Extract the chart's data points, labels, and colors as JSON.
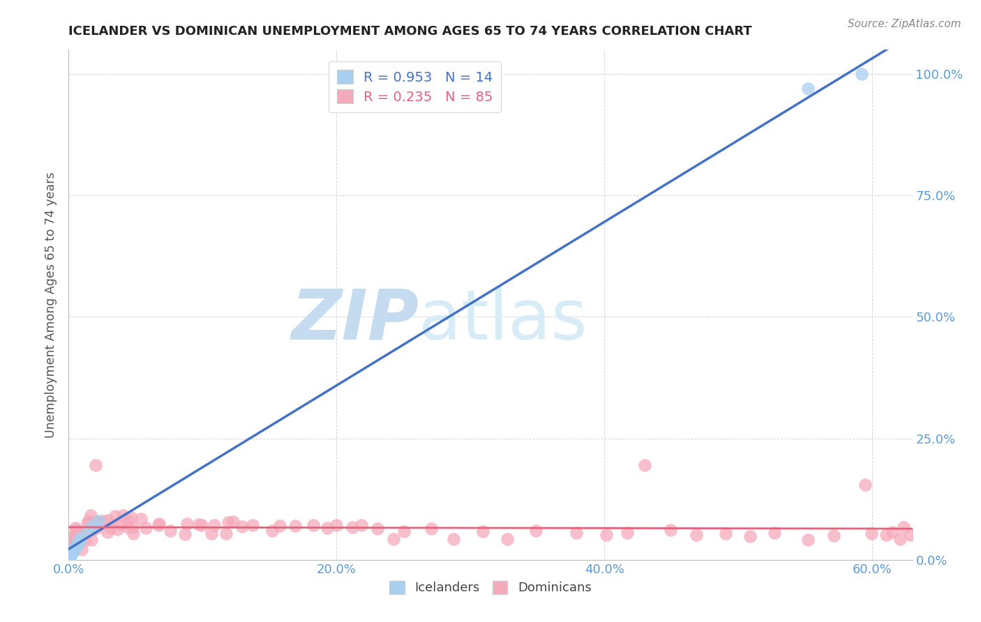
{
  "title": "ICELANDER VS DOMINICAN UNEMPLOYMENT AMONG AGES 65 TO 74 YEARS CORRELATION CHART",
  "source": "Source: ZipAtlas.com",
  "ylabel": "Unemployment Among Ages 65 to 74 years",
  "icelander_R": 0.953,
  "icelander_N": 14,
  "dominican_R": 0.235,
  "dominican_N": 85,
  "icelander_color": "#A8D0F0",
  "dominican_color": "#F5AABB",
  "icelander_line_color": "#4472C4",
  "dominican_line_color": "#E8607A",
  "tick_color": "#5B9BD5",
  "watermark_zip_color": "#C8DFF0",
  "watermark_atlas_color": "#D8E8F5",
  "background_color": "#FFFFFF",
  "xlim": [
    0.0,
    0.63
  ],
  "ylim": [
    0.0,
    1.05
  ],
  "x_ticks": [
    0.0,
    0.2,
    0.4,
    0.6
  ],
  "x_tick_labels": [
    "0.0%",
    "20.0%",
    "40.0%",
    "60.0%"
  ],
  "y_ticks": [
    0.0,
    0.25,
    0.5,
    0.75,
    1.0
  ],
  "y_tick_labels": [
    "0.0%",
    "25.0%",
    "50.0%",
    "75.0%",
    "100.0%"
  ],
  "icelander_x": [
    0.001,
    0.002,
    0.003,
    0.004,
    0.005,
    0.006,
    0.007,
    0.008,
    0.009,
    0.015,
    0.018,
    0.022,
    0.552,
    0.592
  ],
  "icelander_y": [
    0.005,
    0.01,
    0.015,
    0.02,
    0.025,
    0.03,
    0.035,
    0.04,
    0.045,
    0.06,
    0.07,
    0.08,
    0.97,
    1.0
  ],
  "dominican_x": [
    0.001,
    0.002,
    0.003,
    0.004,
    0.005,
    0.006,
    0.007,
    0.008,
    0.009,
    0.01,
    0.011,
    0.012,
    0.013,
    0.014,
    0.015,
    0.016,
    0.017,
    0.018,
    0.019,
    0.02,
    0.022,
    0.024,
    0.026,
    0.028,
    0.03,
    0.032,
    0.034,
    0.036,
    0.038,
    0.04,
    0.042,
    0.044,
    0.046,
    0.048,
    0.05,
    0.055,
    0.06,
    0.065,
    0.07,
    0.075,
    0.08,
    0.085,
    0.09,
    0.095,
    0.1,
    0.105,
    0.11,
    0.115,
    0.12,
    0.125,
    0.13,
    0.14,
    0.15,
    0.16,
    0.17,
    0.18,
    0.19,
    0.2,
    0.21,
    0.22,
    0.23,
    0.24,
    0.25,
    0.27,
    0.29,
    0.31,
    0.33,
    0.35,
    0.38,
    0.4,
    0.42,
    0.45,
    0.47,
    0.49,
    0.51,
    0.53,
    0.55,
    0.57,
    0.59,
    0.6,
    0.61,
    0.615,
    0.62,
    0.625,
    0.63
  ],
  "dominican_y": [
    0.04,
    0.05,
    0.03,
    0.06,
    0.04,
    0.05,
    0.07,
    0.03,
    0.05,
    0.06,
    0.04,
    0.07,
    0.05,
    0.08,
    0.06,
    0.09,
    0.07,
    0.05,
    0.08,
    0.06,
    0.19,
    0.07,
    0.09,
    0.06,
    0.08,
    0.07,
    0.09,
    0.06,
    0.08,
    0.1,
    0.07,
    0.09,
    0.06,
    0.08,
    0.07,
    0.09,
    0.06,
    0.08,
    0.07,
    0.06,
    0.08,
    0.06,
    0.08,
    0.07,
    0.08,
    0.06,
    0.07,
    0.06,
    0.08,
    0.07,
    0.06,
    0.07,
    0.06,
    0.08,
    0.06,
    0.07,
    0.06,
    0.07,
    0.06,
    0.07,
    0.06,
    0.05,
    0.06,
    0.06,
    0.05,
    0.06,
    0.05,
    0.06,
    0.05,
    0.06,
    0.05,
    0.06,
    0.05,
    0.06,
    0.05,
    0.06,
    0.05,
    0.06,
    0.17,
    0.05,
    0.05,
    0.06,
    0.05,
    0.06,
    0.05
  ]
}
